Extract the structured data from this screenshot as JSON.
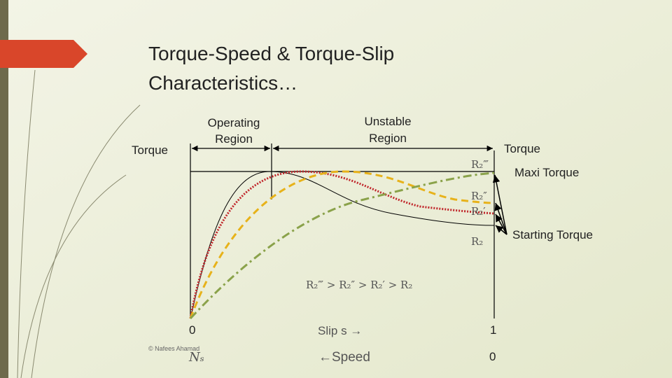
{
  "title": {
    "lines": [
      "Torque-Speed & Torque-Slip",
      "Characteristics…"
    ]
  },
  "diagram": {
    "y_axis_label": "Torque",
    "operating_region": [
      "Operating",
      "Region"
    ],
    "unstable_region": [
      "Unstable",
      "Region"
    ],
    "right_axis_label": "Torque",
    "max_torque_label": "Maxi Torque",
    "starting_torque_label": "Starting Torque",
    "curve_labels": [
      "R₂‴",
      "R₂″",
      "R₂′",
      "R₂"
    ],
    "condition": "R₂‴ > R₂″ > R₂′ > R₂",
    "slip_start": "0",
    "slip_label": "Slip s →",
    "slip_end": "1",
    "speed_start": "Nₛ",
    "speed_label": "←Speed",
    "speed_end": "0"
  },
  "footer": {
    "credit": "© Nafees Ahamad"
  }
}
